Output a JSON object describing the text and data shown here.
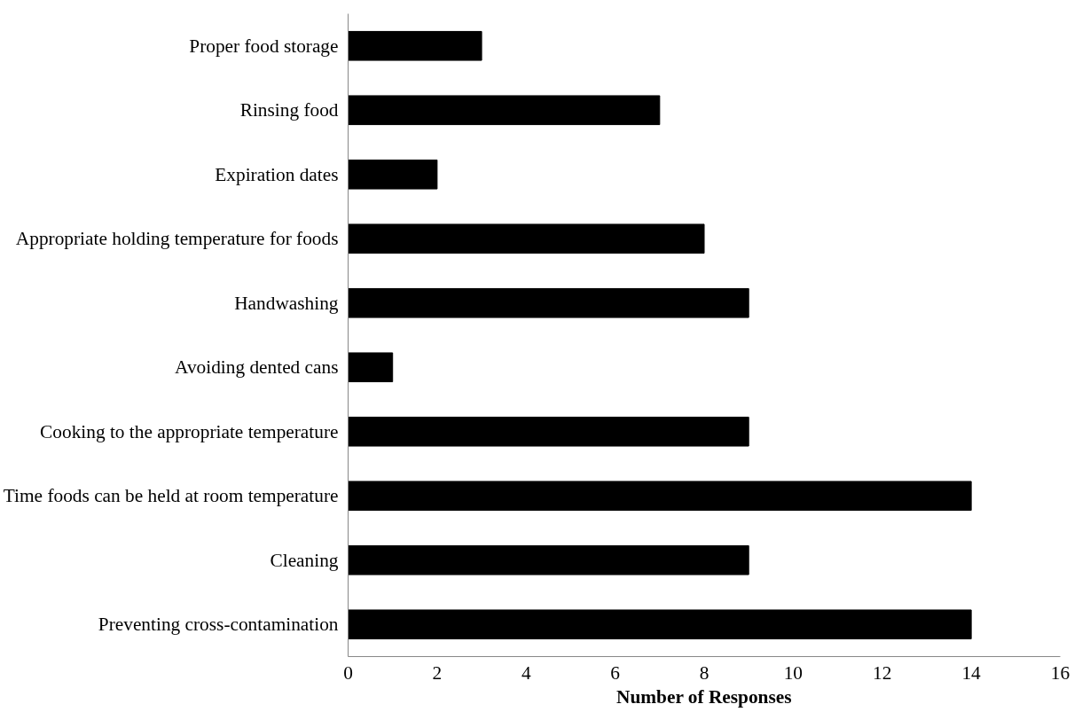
{
  "chart_data": {
    "type": "bar",
    "orientation": "horizontal",
    "xlabel": "Number of Responses",
    "categories": [
      "Proper food storage",
      "Rinsing food",
      "Expiration dates",
      "Appropriate holding temperature for foods",
      "Handwashing",
      "Avoiding dented cans",
      "Cooking to the appropriate temperature",
      "Time foods can be held at room temperature",
      "Cleaning",
      "Preventing cross-contamination"
    ],
    "values": [
      3,
      7,
      2,
      8,
      9,
      1,
      9,
      14,
      9,
      14
    ],
    "color": "#000000",
    "xlim": [
      0,
      16
    ],
    "xticks": [
      0,
      2,
      4,
      6,
      8,
      10,
      12,
      14,
      16
    ]
  }
}
